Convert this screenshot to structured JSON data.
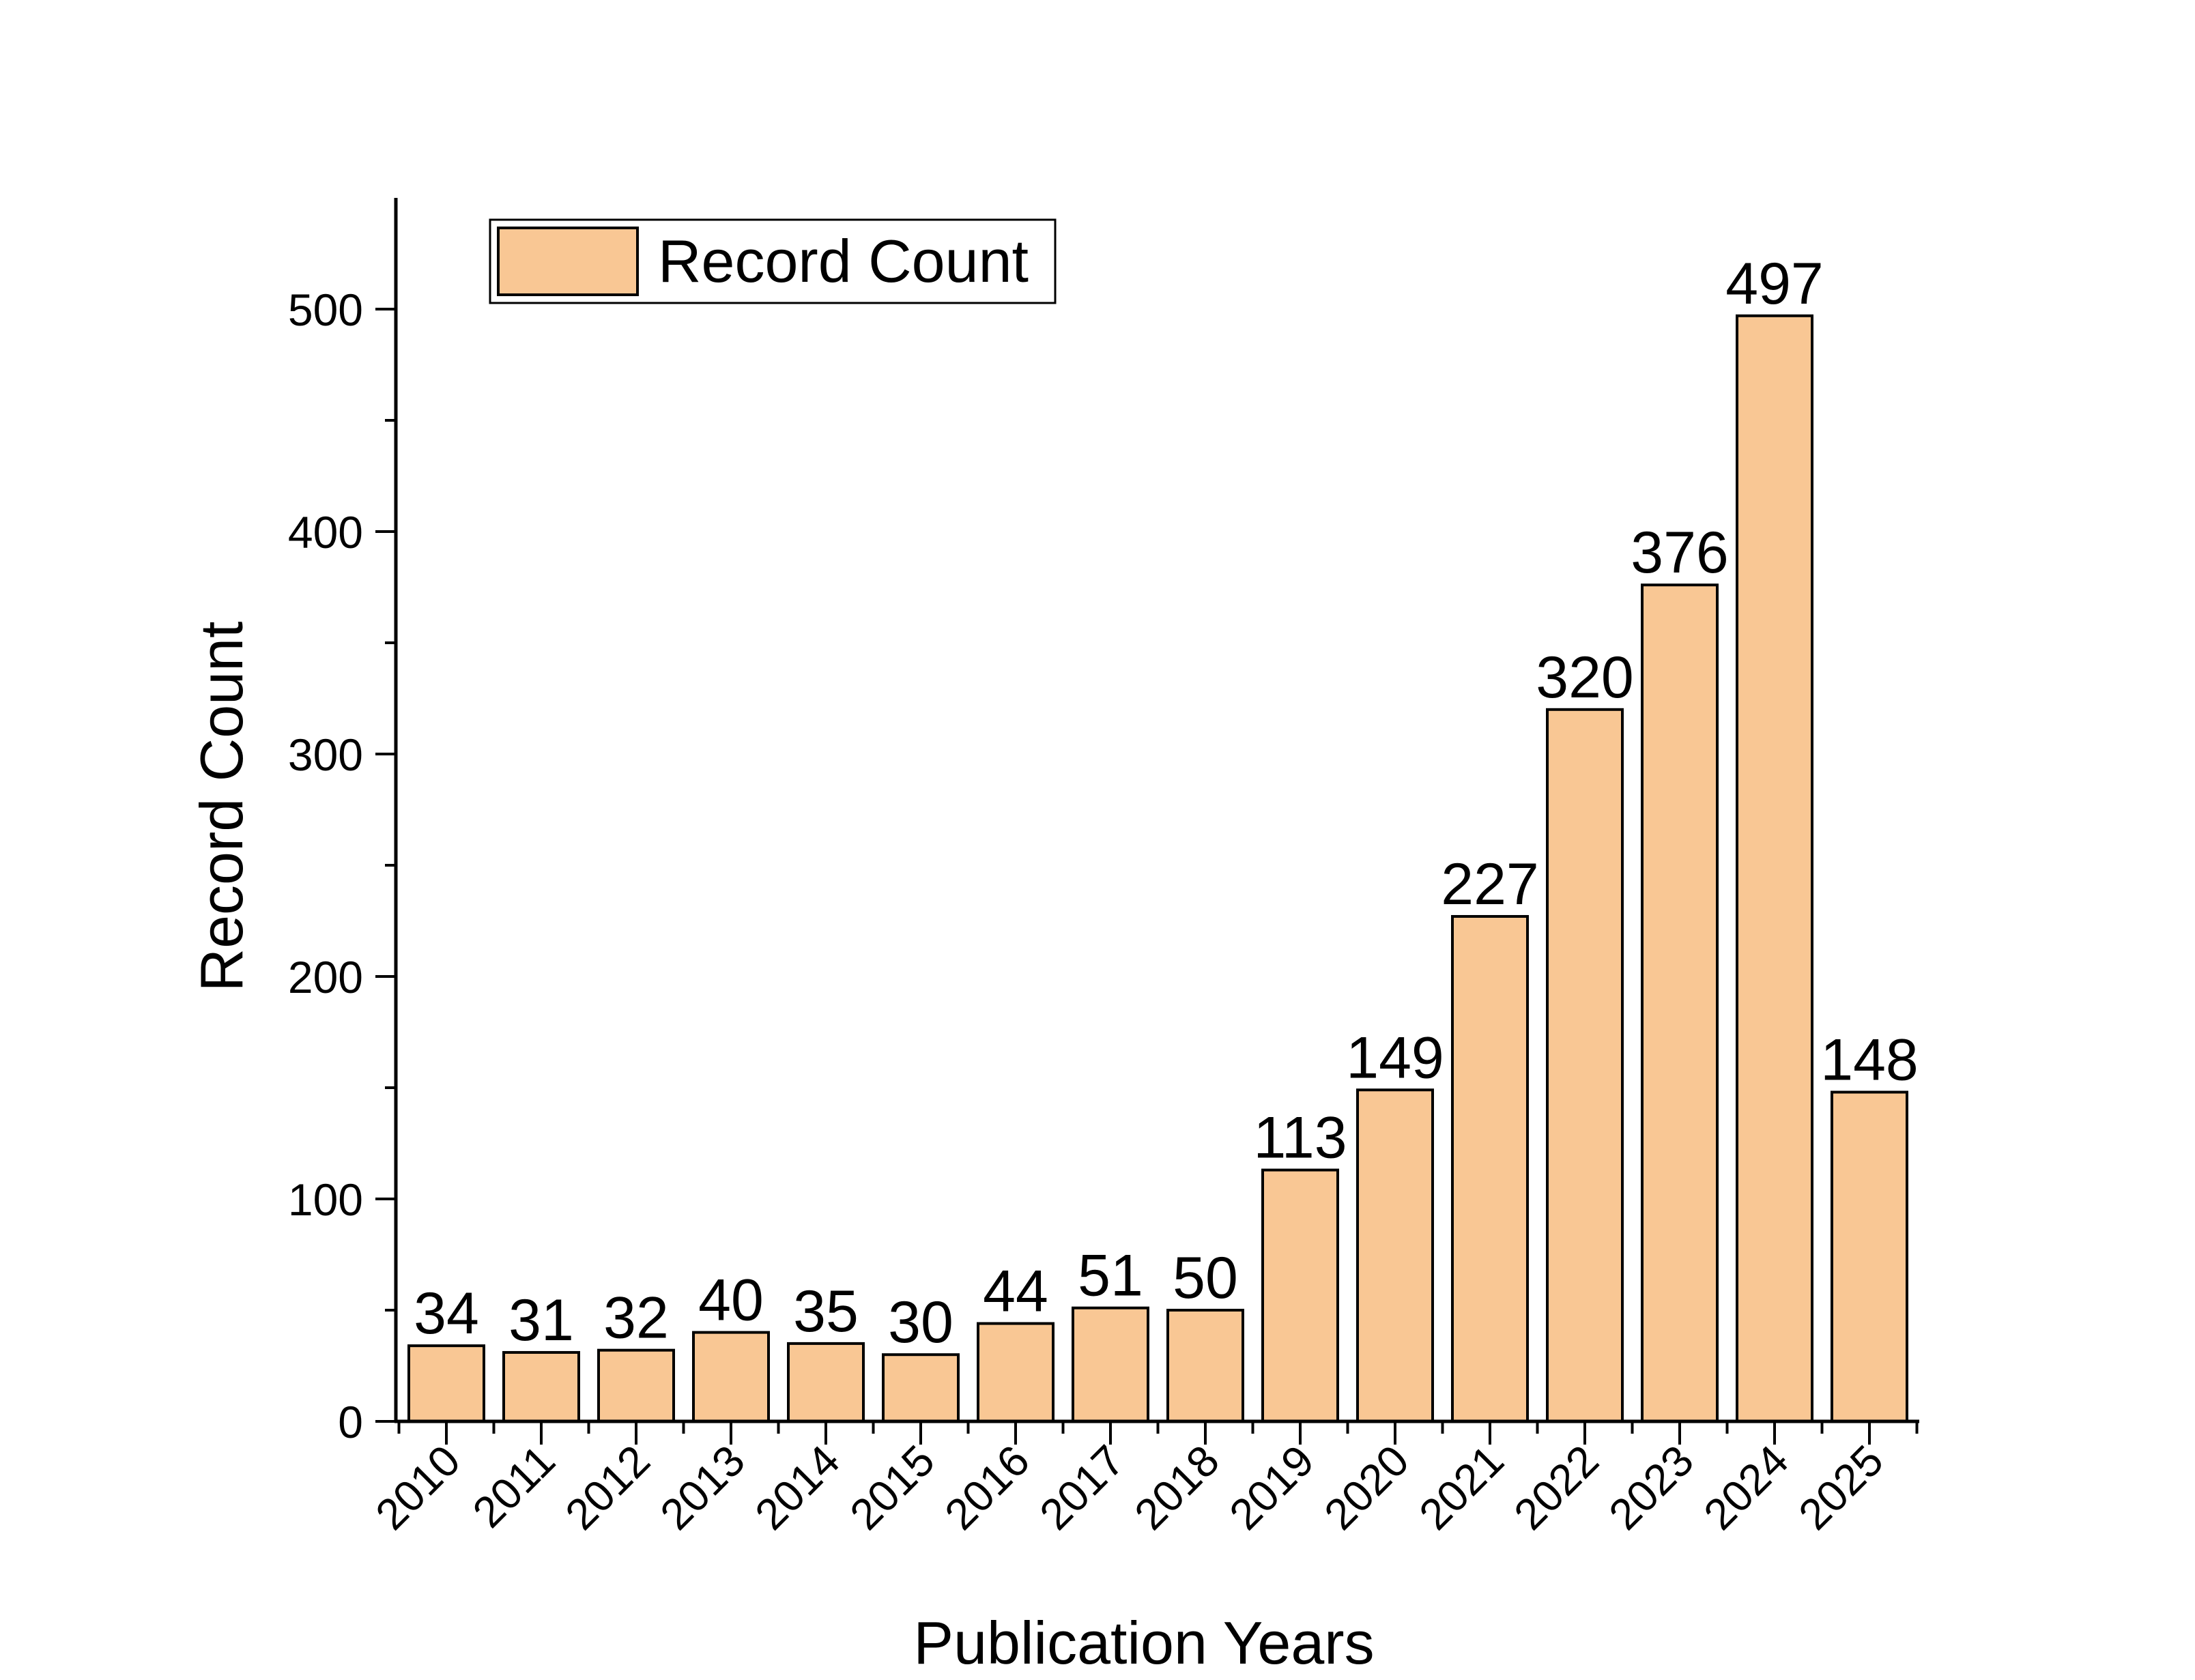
{
  "chart_data": {
    "type": "bar",
    "title": "",
    "xlabel": "Publication Years",
    "ylabel": "Record Count",
    "categories": [
      "2010",
      "2011",
      "2012",
      "2013",
      "2014",
      "2015",
      "2016",
      "2017",
      "2018",
      "2019",
      "2020",
      "2021",
      "2022",
      "2023",
      "2024",
      "2025"
    ],
    "series": [
      {
        "name": "Record Count",
        "values": [
          34,
          31,
          32,
          40,
          35,
          30,
          44,
          51,
          50,
          113,
          149,
          227,
          320,
          376,
          497,
          148
        ]
      }
    ],
    "ylim": [
      0,
      550
    ],
    "yticks": [
      0,
      100,
      200,
      300,
      400,
      500
    ],
    "ytick_labels": [
      "0",
      "100",
      "200",
      "300",
      "400",
      "500"
    ],
    "data_labels": [
      "34",
      "31",
      "32",
      "40",
      "35",
      "30",
      "44",
      "51",
      "50",
      "113",
      "149",
      "227",
      "320",
      "376",
      "497",
      "148"
    ],
    "legend": {
      "entries": [
        "Record Count"
      ],
      "placement": "top-left"
    },
    "grid": false,
    "colors": {
      "bar_fill": "#F9C794",
      "bar_stroke": "#000000",
      "axis": "#000000"
    }
  }
}
